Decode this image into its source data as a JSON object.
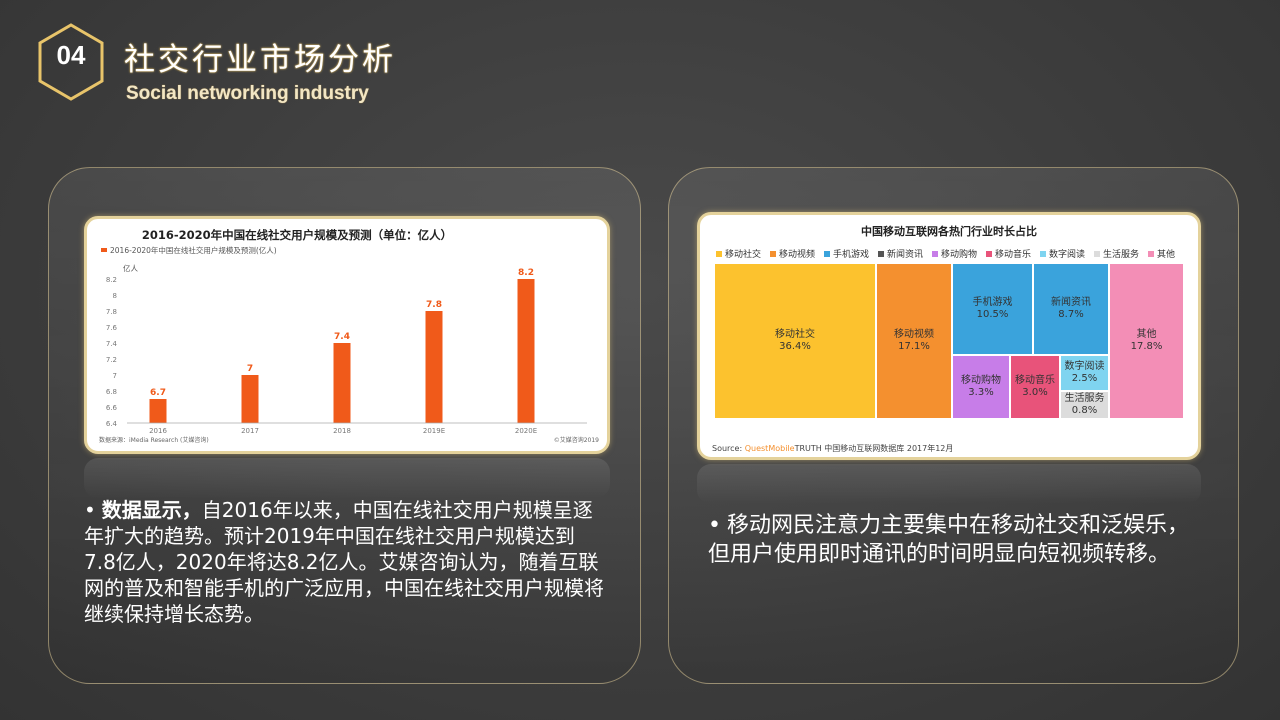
{
  "header": {
    "section_number": "04",
    "title": "社交行业市场分析",
    "subtitle": "Social networking industry"
  },
  "left_panel": {
    "text_bold": "数据显示，",
    "text_rest": "自2016年以来，中国在线社交用户规模呈逐年扩大的趋势。预计2019年中国在线社交用户规模达到7.8亿人，2020年将达8.2亿人。艾媒咨询认为，随着互联网的普及和智能手机的广泛应用，中国在线社交用户规模将继续保持增长态势。"
  },
  "right_panel": {
    "text": "移动网民注意力主要集中在移动社交和泛娱乐，但用户使用即时通讯的时间明显向短视频转移。"
  },
  "chart_data": [
    {
      "type": "bar",
      "title": "2016-2020年中国在线社交用户规模及预测（单位：亿人）",
      "legend": "2016-2020年中国在线社交用户规模及预测(亿人)",
      "ylabel": "亿人",
      "categories": [
        "2016",
        "2017",
        "2018",
        "2019E",
        "2020E"
      ],
      "values": [
        6.7,
        7.0,
        7.4,
        7.8,
        8.2
      ],
      "value_labels": [
        "6.7",
        "7",
        "7.4",
        "7.8",
        "8.2"
      ],
      "yticks": [
        "6.4",
        "6.6",
        "6.8",
        "7",
        "7.2",
        "7.4",
        "7.6",
        "7.8",
        "8",
        "8.2"
      ],
      "ylim": [
        6.4,
        8.2
      ],
      "bar_color": "#f05a1a",
      "source": "数据来源：iMedia Research (艾媒咨询)",
      "watermark": "©艾媒咨询2019",
      "grid": false
    },
    {
      "type": "treemap",
      "title": "中国移动互联网各热门行业时长占比",
      "legend": [
        "移动社交",
        "移动视频",
        "手机游戏",
        "新闻资讯",
        "移动购物",
        "移动音乐",
        "数字阅读",
        "生活服务",
        "其他"
      ],
      "items": [
        {
          "name": "移动社交",
          "label": "36.4%",
          "value": 36.4,
          "color": "#fcc22e"
        },
        {
          "name": "移动视频",
          "label": "17.1%",
          "value": 17.1,
          "color": "#f4902f"
        },
        {
          "name": "手机游戏",
          "label": "10.5%",
          "value": 10.5,
          "color": "#3aa3dc"
        },
        {
          "name": "新闻资讯",
          "label": "8.7%",
          "value": 8.7,
          "color": "#3aa3dc"
        },
        {
          "name": "移动购物",
          "label": "3.3%",
          "value": 3.3,
          "color": "#c77de8"
        },
        {
          "name": "移动音乐",
          "label": "3.0%",
          "value": 3.0,
          "color": "#e8537a"
        },
        {
          "name": "数字阅读",
          "label": "2.5%",
          "value": 2.5,
          "color": "#7fd4f0"
        },
        {
          "name": "生活服务",
          "label": "0.8%",
          "value": 0.8,
          "color": "#dcdcdc"
        },
        {
          "name": "其他",
          "label": "17.8%",
          "value": 17.8,
          "color": "#f38eb6"
        }
      ],
      "legend_colors": [
        "#fcc22e",
        "#f4902f",
        "#3aa3dc",
        "#555555",
        "#c77de8",
        "#e8537a",
        "#7fd4f0",
        "#dcdcdc",
        "#f38eb6"
      ],
      "source_prefix": "Source:",
      "source_brand": "QuestMobile",
      "source_rest": "TRUTH 中国移动互联网数据库 2017年12月"
    }
  ]
}
